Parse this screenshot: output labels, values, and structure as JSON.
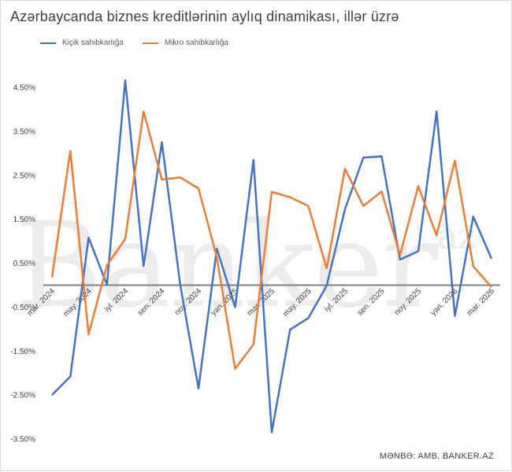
{
  "chart_data": {
    "type": "line",
    "title": "Azərbaycanda biznes kreditlərinin aylıq dinamikası, illər üzrə",
    "source": "MƏNBƏ:  AMB,  BANKER.AZ",
    "watermark": {
      "main": "Banker",
      "sup": "az"
    },
    "legend_placement": "top-left",
    "ylim": [
      -0.035,
      0.05
    ],
    "y_ticks": [
      "4.50%",
      "3.50%",
      "2.50%",
      "1.50%",
      "0.50%",
      "-0.50%",
      "-1.50%",
      "-2.50%",
      "-3.50%"
    ],
    "y_tick_values": [
      0.045,
      0.035,
      0.025,
      0.015,
      0.005,
      -0.005,
      -0.015,
      -0.025,
      -0.035
    ],
    "grid": false,
    "x_tick_labels": [
      {
        "index": 0,
        "label": "mar. 2024"
      },
      {
        "index": 2,
        "label": "may. 2024"
      },
      {
        "index": 4,
        "label": "iyl. 2024"
      },
      {
        "index": 6,
        "label": "sen. 2024"
      },
      {
        "index": 8,
        "label": "noy. 2024"
      },
      {
        "index": 10,
        "label": "yan. 2025"
      },
      {
        "index": 12,
        "label": "mar. 2025"
      },
      {
        "index": 14,
        "label": "may. 2025"
      },
      {
        "index": 16,
        "label": "iyl. 2025"
      },
      {
        "index": 18,
        "label": "sen. 2025"
      },
      {
        "index": 20,
        "label": "noy. 2025"
      },
      {
        "index": 22,
        "label": "yan. 2026"
      },
      {
        "index": 24,
        "label": "mar. 2026"
      }
    ],
    "x": [
      "mar. 2024",
      "apr. 2024",
      "may. 2024",
      "iyn. 2024",
      "iyl. 2024",
      "avq. 2024",
      "sen. 2024",
      "okt. 2024",
      "noy. 2024",
      "dek. 2024",
      "yan. 2025",
      "fev. 2025",
      "mar. 2025",
      "apr. 2025",
      "may. 2025",
      "iyn. 2025",
      "iyl. 2025",
      "avq. 2025",
      "sen. 2025",
      "okt. 2025",
      "noy. 2025",
      "dek. 2025",
      "yan. 2026",
      "fev. 2026",
      "mar. 2026"
    ],
    "series": [
      {
        "name": "Kiçik sahibkarlığa",
        "color": "#4472c4",
        "values": [
          -0.025,
          -0.0208,
          0.0108,
          0.0001,
          0.0466,
          0.0043,
          0.0325,
          0.0001,
          -0.0235,
          0.0083,
          -0.005,
          0.0285,
          -0.0335,
          -0.0101,
          -0.0075,
          -0.0001,
          0.0173,
          0.029,
          0.0293,
          0.0058,
          0.0077,
          0.0395,
          -0.007,
          0.0156,
          0.006
        ]
      },
      {
        "name": "Mikro sahibkarlığa",
        "color": "#ed7d31",
        "values": [
          0.0018,
          0.0305,
          -0.0112,
          0.0045,
          0.0105,
          0.0395,
          0.024,
          0.0245,
          0.022,
          0.0063,
          -0.019,
          -0.0135,
          0.0212,
          0.02,
          0.018,
          0.0038,
          0.0265,
          0.018,
          0.0213,
          0.0068,
          0.0225,
          0.0113,
          0.0283,
          0.0043,
          -0.0005
        ]
      }
    ]
  }
}
